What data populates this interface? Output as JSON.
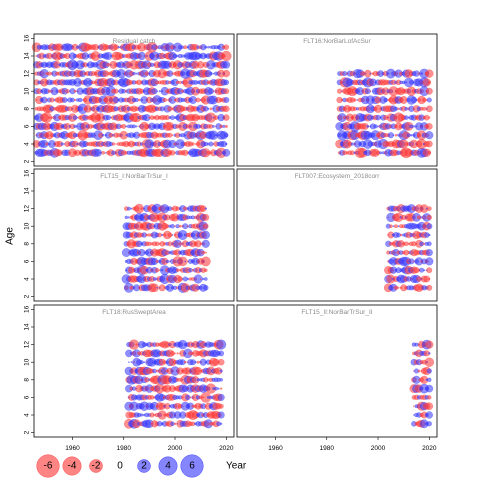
{
  "chart_data": {
    "type": "scatter",
    "subtype": "bubble-residuals",
    "xlabel": "Year",
    "ylabel": "Age",
    "xlim": [
      1945,
      2023
    ],
    "ylim": [
      1.5,
      16.5
    ],
    "x_ticks": [
      1960,
      1980,
      2000,
      2020
    ],
    "y_ticks": [
      2,
      4,
      6,
      8,
      10,
      12,
      14,
      16
    ],
    "ages": [
      3,
      4,
      5,
      6,
      7,
      8,
      9,
      10,
      11,
      12,
      13,
      14,
      15
    ],
    "colors": {
      "positive": "#3333ff",
      "negative": "#ff3333"
    },
    "panels": [
      {
        "title": "Residual catch",
        "years": [
          1946,
          2020
        ],
        "ages": [
          3,
          15
        ]
      },
      {
        "title": "FLT16:NorBarLofAcSur",
        "years": [
          1985,
          2020
        ],
        "ages": [
          3,
          12
        ]
      },
      {
        "title": "FLT15_I:NorBarTrSur_I",
        "years": [
          1981,
          2012
        ],
        "ages": [
          3,
          12
        ]
      },
      {
        "title": "FLT007:Ecosystem_2018corr",
        "years": [
          2004,
          2020
        ],
        "ages": [
          3,
          12
        ]
      },
      {
        "title": "FLT18:RusSweptArea",
        "years": [
          1982,
          2018
        ],
        "ages": [
          3,
          12
        ]
      },
      {
        "title": "FLT15_II:NorBarTrSur_II",
        "years": [
          2014,
          2020
        ],
        "ages": [
          3,
          12
        ]
      }
    ],
    "legend": {
      "values": [
        -6,
        -4,
        -2,
        0,
        2,
        4,
        6
      ],
      "labels": [
        "-6",
        "-4",
        "-2",
        "0",
        "2",
        "4",
        "6"
      ]
    }
  }
}
